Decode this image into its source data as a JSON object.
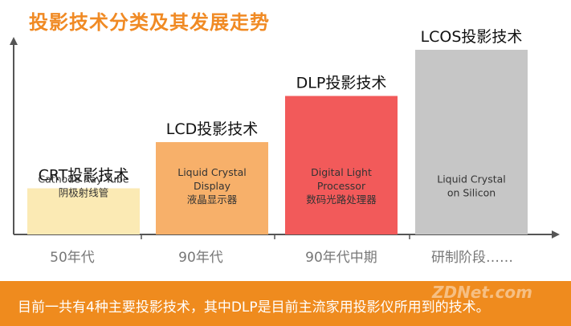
{
  "title": "投影技术分类及其发展走势",
  "footer": {
    "text": "目前一共有4种主要投影技术，其中DLP是目前主流家用投影仪所用到的技术。",
    "watermark": "ZDNet.com"
  },
  "colors": {
    "title": "#f08a24",
    "footer_bg": "#ef8b1e",
    "axis": "#555555"
  },
  "chart_data": {
    "type": "bar",
    "categories": [
      "50年代",
      "90年代",
      "90年代中期",
      "研制阶段……"
    ],
    "values": [
      1,
      2,
      3,
      4
    ],
    "ylim": [
      0,
      4.2
    ],
    "grid": false,
    "bars": [
      {
        "heading": "CRT投影技术",
        "lines": [
          "Cathode Ray Tube",
          "阴极射线管"
        ],
        "color": "#fbeab4"
      },
      {
        "heading": "LCD投影技术",
        "lines": [
          "Liquid Crystal",
          "Display",
          "液晶显示器"
        ],
        "color": "#f7b06a"
      },
      {
        "heading": "DLP投影技术",
        "lines": [
          "Digital Light",
          "Processor",
          "数码光路处理器"
        ],
        "color": "#f25a5a"
      },
      {
        "heading": "LCOS投影技术",
        "lines": [
          "Liquid Crystal",
          "on Silicon"
        ],
        "color": "#c6c6c6"
      }
    ]
  }
}
